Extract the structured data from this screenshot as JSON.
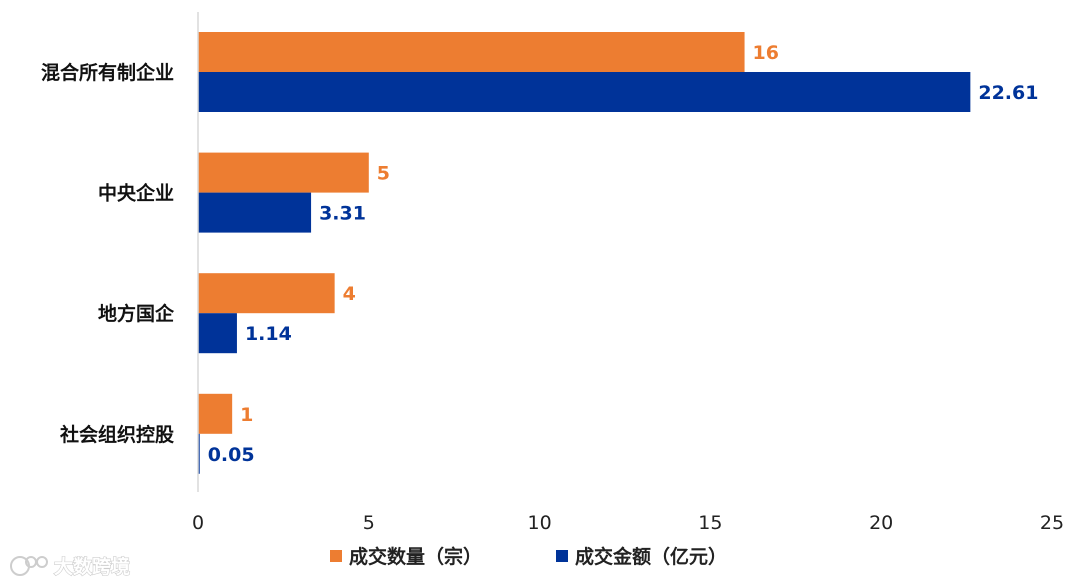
{
  "chart_data": {
    "type": "bar",
    "orientation": "horizontal",
    "categories": [
      "混合所有制企业",
      "中央企业",
      "地方国企",
      "社会组织控股"
    ],
    "series": [
      {
        "name": "成交数量（宗）",
        "values": [
          16,
          5,
          4,
          1
        ],
        "color": "#ED7D31"
      },
      {
        "name": "成交金额（亿元）",
        "values": [
          22.61,
          3.31,
          1.14,
          0.05
        ],
        "color": "#003399"
      }
    ],
    "data_labels": [
      [
        "16",
        "5",
        "4",
        "1"
      ],
      [
        "22.61",
        "3.31",
        "1.14",
        "0.05"
      ]
    ],
    "xlim": [
      0,
      25
    ],
    "xticks": [
      "0",
      "5",
      "10",
      "15",
      "20",
      "25"
    ],
    "grid": false,
    "legend_position": "bottom"
  },
  "watermark": {
    "text": "大数跨境"
  }
}
